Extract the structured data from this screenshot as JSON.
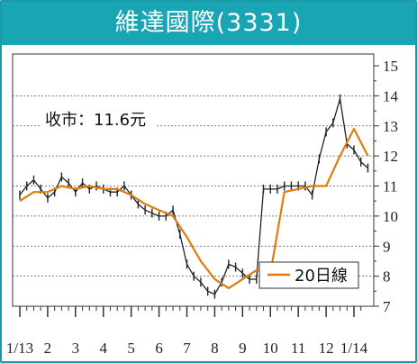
{
  "title": "維達國際(3331)",
  "close_label": "收市：11.6元",
  "legend": "20日線",
  "colors": {
    "frame": "#1aa5b4",
    "price": "#222222",
    "ma": "#e07b10",
    "grid": "#555555"
  },
  "chart_data": {
    "type": "line",
    "title": "維達國際(3331)",
    "annotation": "收市：11.6元",
    "y_ticks": [
      "7",
      "8",
      "9",
      "10",
      "11",
      "12",
      "13",
      "14",
      "15"
    ],
    "ylim": [
      7,
      15
    ],
    "x_ticks": [
      "1/13",
      "2",
      "3",
      "4",
      "5",
      "6",
      "7",
      "8",
      "9",
      "10",
      "11",
      "12",
      "1/14"
    ],
    "grid": "horizontal dashed",
    "legend_position": "bottom-right",
    "series": [
      {
        "name": "price",
        "x": [
          0,
          0.25,
          0.5,
          0.75,
          1,
          1.25,
          1.5,
          1.75,
          2,
          2.25,
          2.5,
          2.75,
          3,
          3.25,
          3.5,
          3.75,
          4,
          4.25,
          4.5,
          4.75,
          5,
          5.25,
          5.5,
          5.75,
          6,
          6.25,
          6.5,
          6.75,
          7,
          7.25,
          7.5,
          7.75,
          8,
          8.25,
          8.5,
          8.75,
          9,
          9.25,
          9.5,
          9.75,
          10,
          10.25,
          10.5,
          10.75,
          11,
          11.25,
          11.5,
          11.75,
          12,
          12.25,
          12.5
        ],
        "y": [
          10.7,
          11,
          11.2,
          10.9,
          10.6,
          10.8,
          11.3,
          11.1,
          10.8,
          11.1,
          10.9,
          11.0,
          10.9,
          10.8,
          10.8,
          11.0,
          10.7,
          10.4,
          10.2,
          10.1,
          10.0,
          10.0,
          10.2,
          9.4,
          8.4,
          8.0,
          7.8,
          7.5,
          7.4,
          7.8,
          8.4,
          8.3,
          8.1,
          7.9,
          7.9,
          10.9,
          10.9,
          10.9,
          11.0,
          11.0,
          11.0,
          11.0,
          10.7,
          11.9,
          12.8,
          13.1,
          13.9,
          12.4,
          12.2,
          11.8,
          11.6
        ]
      },
      {
        "name": "20日線",
        "x": [
          0,
          0.5,
          1,
          1.5,
          2,
          2.5,
          3,
          3.5,
          4,
          4.5,
          5,
          5.5,
          6,
          6.5,
          7,
          7.5,
          8,
          8.5,
          9,
          9.5,
          10,
          10.5,
          11,
          11.5,
          12,
          12.5
        ],
        "y": [
          10.5,
          10.8,
          10.8,
          11.0,
          10.9,
          11.0,
          10.9,
          10.9,
          10.7,
          10.4,
          10.2,
          10.0,
          9.3,
          8.5,
          7.9,
          7.6,
          7.9,
          8.2,
          8.1,
          10.8,
          10.9,
          11.0,
          11.0,
          12.0,
          12.9,
          12.0
        ]
      }
    ]
  }
}
